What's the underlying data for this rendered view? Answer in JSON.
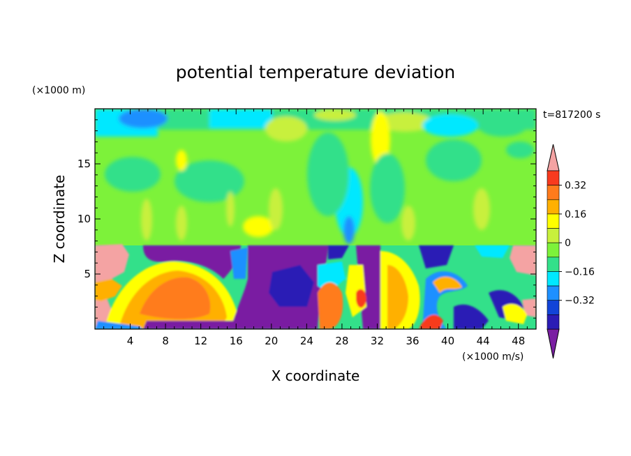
{
  "chart_data": {
    "type": "heatmap",
    "title": "potential temperature deviation",
    "xlabel": "X coordinate",
    "ylabel": "Z coordinate",
    "x_unit_label": "(×1000 m/s)",
    "y_unit_label": "(×1000 m)",
    "time_label": "t=817200 s",
    "xlim": [
      0,
      50
    ],
    "ylim": [
      0,
      20
    ],
    "x_ticks": [
      4,
      8,
      12,
      16,
      20,
      24,
      28,
      32,
      36,
      40,
      44,
      48
    ],
    "y_ticks": [
      5,
      10,
      15
    ],
    "colorbar": {
      "levels": [
        -0.48,
        -0.4,
        -0.32,
        -0.24,
        -0.16,
        -0.08,
        0,
        0.08,
        0.16,
        0.24,
        0.32,
        0.4
      ],
      "tick_labels": [
        "0.32",
        "0.16",
        "0",
        "−0.16",
        "−0.32"
      ],
      "tick_values": [
        0.32,
        0.16,
        0,
        -0.16,
        -0.32
      ],
      "colors": [
        "#7a1fa2",
        "#2b1cb5",
        "#1244d8",
        "#1e90ff",
        "#00e8ff",
        "#33e08a",
        "#7df23a",
        "#c8f03c",
        "#ffff00",
        "#ffb000",
        "#ff7b1c",
        "#f83a1e",
        "#f4a3a3"
      ],
      "extend": "both"
    },
    "description_values": {
      "upper_layer_mean_range": [
        0.0,
        0.12
      ],
      "lower_layer_range": [
        -0.48,
        0.48
      ],
      "layer_top_z": 7.8
    }
  }
}
